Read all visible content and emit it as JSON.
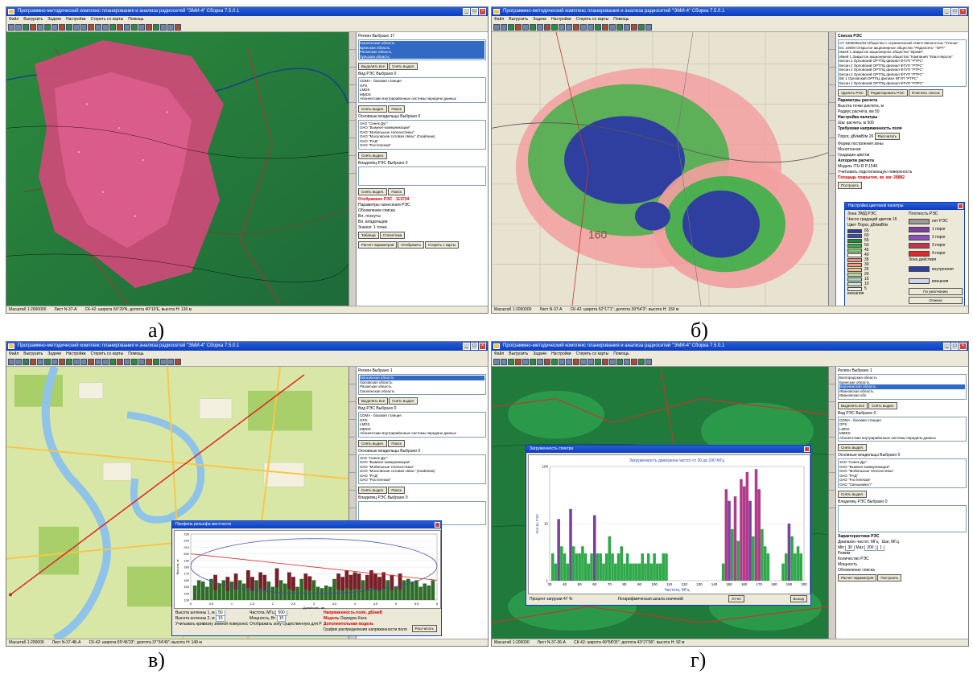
{
  "captions": [
    "а)",
    "б)",
    "в)",
    "г)"
  ],
  "app": {
    "title": "Программно-методический комплекс планирования и анализа радиосетей \"ЭМИ-4\" Сборка 7.5.0.1",
    "menu": [
      "Файл",
      "Выгрузить",
      "Задачи",
      "Настройки",
      "Стереть со карты",
      "Помощь"
    ]
  },
  "screen_a": {
    "status": [
      "Масштаб 1:2000000",
      "Лист N-37-А",
      "СК-42: широта 56°29'N, долгота 40°19'E, высота H: 136 м"
    ],
    "panel": {
      "regions_header": "Регион   Выбрано 17",
      "regions": [
        "Смоленская область",
        "Брянская область",
        "Рязанская область",
        "Тульская область"
      ],
      "select_all": "Выделить все",
      "deselect": "Снять выдел.",
      "rs_type_header": "Вид РЭС   Выбрано 0",
      "rs_types": [
        "CDMA - базовая станция",
        "GPS",
        "LMDS",
        "MMDS",
        "Абонентские внутрирайонные системы передачи данных"
      ],
      "owners_header": "Основные владельцы   Выбрано 0",
      "owners": [
        "ЗАО \"Синек Дуг\"",
        "ОАО \"Вымпел-коммуникации\"",
        "ОАО \"Мобильные телесистемы\"",
        "ОАО \"Московская сотовая связь\" (Скайлинк)",
        "ОАО \"РАД\"",
        "ОАО \"Ростелеком\""
      ],
      "owner_rs_header": "Владелец РЭС   Выбрано 0",
      "search": "Поиск",
      "displayed": "Отображено РЭС - 113734",
      "opts": [
        "Обновление списка",
        "Вл. лоскуты",
        "Вл. владельцев"
      ],
      "table_btn": "Таблица",
      "stats_btn": "Статистика",
      "calc_params": "Расчет параметров",
      "display_btn": "Отобразить",
      "erase_btn": "Стереть с карты",
      "display_params": "Параметры нанесения РЭС",
      "icon_label": "Значок",
      "icon_value": "1 точка"
    }
  },
  "screen_b": {
    "status": [
      "Масштаб 1:2000000",
      "Лист N-37-А",
      "СК-42: широта 52°17'1\"; долгота 39°54'3\"; высота H: 156 м"
    ],
    "panel": {
      "list_header": "Список РЭС",
      "items": [
        "СУ 10000351/03 Общество с ограниченной ответственностью \"Утенок\"",
        "ЕС 10000 Открытое акционерное общество \"Радиосеть\" \"ОРТ\"",
        "Имей 1 Закрытое акционерное общество \"Время\"",
        "Имей 1 Закрытое акционерное общество \"Компания \"Изал-персон\"",
        "Бесан 2 Орловский ОРТПЦ филиал ФГУП \"РТРС\"",
        "Бесан 2 Орловский ОРТПЦ филиал ФГУП \"РТРС\"",
        "Бесан 2 Орловский ОРТПЦ филиал ФГУП \"РТРС\"",
        "Бесан 2 Орловский ОРТПЦ филиал ФГУП \"РТРС\"",
        "ВЕ 1 Орловский ОРТПЦ филиал ФГУП \"РТРС\"",
        "Бесан 1 Орловский ОРТПЦ филиал ФГУП \"РТРС\""
      ],
      "delete_rs": "Удалить РЭС",
      "edit_rs": "Редактировать РЭС",
      "clear_list": "Очистить список",
      "calc_params": "Параметры расчета",
      "height_label": "Высота точки расчета, м",
      "radius_label": "Радиус расчета, км",
      "radius_value": "50",
      "palette_setup": "Настройка палитры",
      "step_label": "Шаг расчета, м",
      "step_value": "500",
      "field_req": "Требуемая напряженность поля",
      "porog_label": "Порог, дБ/мкВ/м",
      "porog_value": "26",
      "calc_btn": "Рассчитать",
      "zone_form": "Форма построения зоны",
      "mono": "Монотонная",
      "gradient": "Градации цветов",
      "algorithm": "Алгоритм расчета",
      "model": "Модель ITU-R P.1546",
      "consider_surface": "Учитывать подстилающую поверхность",
      "coverage_area": "Площадь покрытия, кв. км: 28882",
      "build_btn": "Построить"
    },
    "palette": {
      "title": "Настройка цветовой палитры",
      "zone_header": "Зона ЭМД РЭС",
      "grad_count_label": "Число градаций цветов",
      "grad_count": "15",
      "density_header": "Плотность РЭС",
      "col_color": "Цвет",
      "col_porog": "Порог, дБ/мкВ/м",
      "levels": [
        "65",
        "60",
        "55",
        "50",
        "45",
        "40",
        "35",
        "30",
        "25",
        "20",
        "15",
        "10",
        "5"
      ],
      "level_colors": [
        "#2d3f9e",
        "#3650b8",
        "#1f8c3a",
        "#2fb04a",
        "#7ccf6a",
        "#ffffff",
        "#f08a8a",
        "#f2a07a",
        "#f6c08a",
        "#b9dc9a",
        "#a7d7c9",
        "#d3ead2",
        "#eaf4ea"
      ],
      "outside": "внешняя",
      "density_labels": [
        "нет РЭС",
        "1 порог",
        "2 порог",
        "3 порог",
        "4 порог"
      ],
      "density_colors": [
        "#9a9a9a",
        "#7b3fa0",
        "#8e4fb8",
        "#c0394a",
        "#e02a2a"
      ],
      "action_zone": "Зона действия",
      "inner": "внутренняя",
      "outer": "внешняя",
      "default_btn": "По умолчанию",
      "cancel_btn": "Отмена",
      "ok_btn": "Ok"
    },
    "map_label": "160"
  },
  "screen_c": {
    "status": [
      "Масштаб 1:200000",
      "Лист N-37-4Б-А",
      "СК-42: широта 55°45'23\"; долгота 37°34'49\"; высота H: 149 м"
    ],
    "panel": {
      "regions_header": "Регион   Выбрано 1",
      "regions": [
        "Московская область",
        "Орловская область",
        "Рязанская область",
        "Смоленская область"
      ],
      "select_all": "Выделить все",
      "deselect": "Снять выдел.",
      "rs_type_header": "Вид РЭС   Выбрано 0",
      "rs_types": [
        "CDMA - базовая станция",
        "GPS",
        "LMDS",
        "MMDS",
        "Абонентские внутрирайонные системы передачи данных"
      ],
      "owners_header": "Основные владельцы   Выбрано 0",
      "owners": [
        "ЗАО \"Синек Дуг\"",
        "ОАО \"Вымпел-коммуникации\"",
        "ОАО \"Мобильные телесистемы\"",
        "ОАО \"Московская сотовая связь\" (Скайлинк)",
        "ОАО \"РАД\"",
        "ОАО \"Ростелеком\""
      ],
      "owner_rs_header": "Владелец РЭС   Выбрано 0",
      "search": "Поиск",
      "displayed": "Отображено РЭС - 496",
      "display_params": "Параметры нанесения РЭС",
      "opts": [
        "Обновление списка"
      ],
      "erase_btn": "Стереть с карты"
    },
    "profile": {
      "title": "Профиль рельефа местности",
      "ylabel": "Высота, м",
      "xlabel": "Дальность, км",
      "antenna_h1_label": "Высота антенны 1, м",
      "antenna_h1": "50",
      "antenna_h2_label": "Высота антенны 2, м",
      "antenna_h2": "10",
      "freq_label": "Частота, МГц",
      "freq": "500",
      "power_label": "Мощность, Вт",
      "power": "10",
      "field_strength": "Напряженность поля, дБ/мкВ",
      "model_label": "Модель",
      "model": "Окумура-Хата",
      "extra_model": "Дополнительная модель",
      "chk1": "Учитывать кривизну земной поверхности",
      "chk2": "Отображать зону существенную для РРВ",
      "chk3": "График распределения напряженности поля",
      "calc_btn": "Рассчитать"
    }
  },
  "screen_d": {
    "status": [
      "Масштаб 1:200000",
      "Лист N-37-36-А",
      "СК-42: широта 49°58'05\"; долгота 43°27'06\"; высота H: 92 м"
    ],
    "panel": {
      "regions_header": "Регион   Выбрано 1",
      "regions": [
        "Белгородская область",
        "Брянская область",
        "Воронежская область",
        "Ивановская область",
        "Ивановская обл."
      ],
      "select_all": "Выделить все",
      "deselect": "Снять выдел.",
      "rs_type_header": "Вид РЭС   Выбрано 0",
      "rs_types": [
        "CDMA - базовая станция",
        "GPS",
        "LMDS",
        "MMDS",
        "Абонентские внутрирайонные системы передачи данных"
      ],
      "owners_header": "Основные владельцы   Выбрано 0",
      "owners": [
        "ЗАО \"Синек Дуг\"",
        "ОАО \"Вымпел-коммуникации\"",
        "ОАО \"Мобильные телесистемы\"",
        "ОАО \"РАД\"",
        "ОАО \"Ростелеком\"",
        "ОАО \"Связьинвест\""
      ],
      "owner_rs_header": "Владелец РЭС   Выбрано 0",
      "characteristics": "Характеристики РЭС",
      "range_label": "Диапазон частот, МГц",
      "step_label": "Шаг, МГц",
      "min_label": "Min",
      "min": "30",
      "max_label": "Max",
      "max": "200",
      "step": "1",
      "mode": "Режим",
      "mode1": "Количество РЭС",
      "mode2": "Мощность",
      "update": "Обновление списка",
      "calc_params": "Расчет параметров",
      "build_btn": "Построить"
    },
    "spectrum": {
      "title": "Загруженность спектра",
      "subtitle": "Загруженность диапазона частот от 30 до 200 МГц",
      "ylabel": "Кол-во РЭС",
      "xlabel": "Частота, МГц",
      "load_percent": "Процент загрузки 47 %",
      "log_scale": "Логарифмическая шкала значений",
      "report_btn": "Отчет",
      "exit_btn": "Выход"
    }
  },
  "chart_data": [
    {
      "type": "bar",
      "title": "",
      "xlabel": "Дальность, км",
      "ylabel": "Высота, м",
      "xlim": [
        0,
        6
      ],
      "ylim": [
        130,
        230
      ],
      "x_ticks": [
        "0",
        "0.5",
        "1",
        "1.5",
        "2",
        "2.5",
        "3",
        "3.5",
        "4",
        "4.5",
        "5",
        "5.5",
        "6"
      ],
      "y_ticks": [
        "130",
        "140",
        "150",
        "160",
        "170",
        "180",
        "190",
        "200",
        "210",
        "220",
        "230"
      ],
      "x": [
        0.1,
        0.2,
        0.3,
        0.4,
        0.5,
        0.6,
        0.7,
        0.8,
        0.9,
        1.0,
        1.1,
        1.2,
        1.3,
        1.4,
        1.5,
        1.6,
        1.7,
        1.8,
        1.9,
        2.0,
        2.1,
        2.2,
        2.3,
        2.4,
        2.5,
        2.6,
        2.7,
        2.8,
        2.9,
        3.0,
        3.1,
        3.2,
        3.3,
        3.4,
        3.5,
        3.6,
        3.7,
        3.8,
        3.9,
        4.0,
        4.1,
        4.2,
        4.3,
        4.4,
        4.5,
        4.6,
        4.7,
        4.8,
        4.9,
        5.0,
        5.1,
        5.2,
        5.3,
        5.4,
        5.5,
        5.6,
        5.7,
        5.8,
        5.9
      ],
      "terrain": [
        152,
        160,
        158,
        150,
        162,
        168,
        155,
        160,
        165,
        158,
        170,
        160,
        155,
        175,
        165,
        160,
        172,
        168,
        158,
        150,
        178,
        160,
        155,
        172,
        165,
        150,
        162,
        170,
        166,
        160,
        150,
        148,
        152,
        150,
        162,
        170,
        165,
        175,
        168,
        172,
        170,
        160,
        168,
        175,
        170,
        165,
        172,
        160,
        168,
        150,
        170,
        160,
        162,
        158,
        160,
        150,
        155,
        152,
        160
      ],
      "direct_line": {
        "from": [
          0,
          200
        ],
        "to": [
          6,
          160
        ]
      },
      "fresnel_zone": {
        "top": 223,
        "bottom": 140
      }
    },
    {
      "type": "bar",
      "title": "Загруженность диапазона частот от 30 до 200 МГц",
      "xlabel": "Частота, МГц",
      "ylabel": "Кол-во РЭС",
      "log_y": true,
      "xlim": [
        30,
        200
      ],
      "ylim": [
        1,
        100
      ],
      "x_ticks": [
        "30",
        "40",
        "50",
        "60",
        "70",
        "80",
        "90",
        "100",
        "110",
        "120",
        "130",
        "140",
        "150",
        "160",
        "170",
        "180",
        "190",
        "200"
      ],
      "y_ticks": [
        "1",
        "10",
        "100"
      ],
      "x": [
        32,
        34,
        36,
        38,
        40,
        42,
        44,
        46,
        48,
        50,
        52,
        54,
        56,
        58,
        60,
        62,
        64,
        66,
        68,
        70,
        72,
        74,
        76,
        78,
        80,
        82,
        84,
        86,
        88,
        90,
        92,
        94,
        96,
        98,
        100,
        102,
        104,
        106,
        108,
        146,
        148,
        150,
        152,
        154,
        156,
        158,
        160,
        162,
        164,
        166,
        168,
        170,
        172,
        174,
        176,
        186,
        188,
        190,
        192,
        194,
        196,
        198
      ],
      "values": [
        3,
        2,
        12,
        4,
        3,
        2,
        18,
        4,
        3,
        3,
        4,
        3,
        2,
        3,
        14,
        3,
        3,
        2,
        3,
        6,
        3,
        2,
        3,
        4,
        2,
        3,
        2,
        2,
        2,
        2,
        3,
        2,
        3,
        2,
        3,
        2,
        2,
        3,
        3,
        2,
        40,
        25,
        8,
        30,
        5,
        60,
        45,
        80,
        25,
        6,
        90,
        40,
        8,
        4,
        3,
        2,
        3,
        10,
        6,
        3,
        4,
        3
      ],
      "colors_note": "green for low values, purple/red for high values"
    }
  ]
}
